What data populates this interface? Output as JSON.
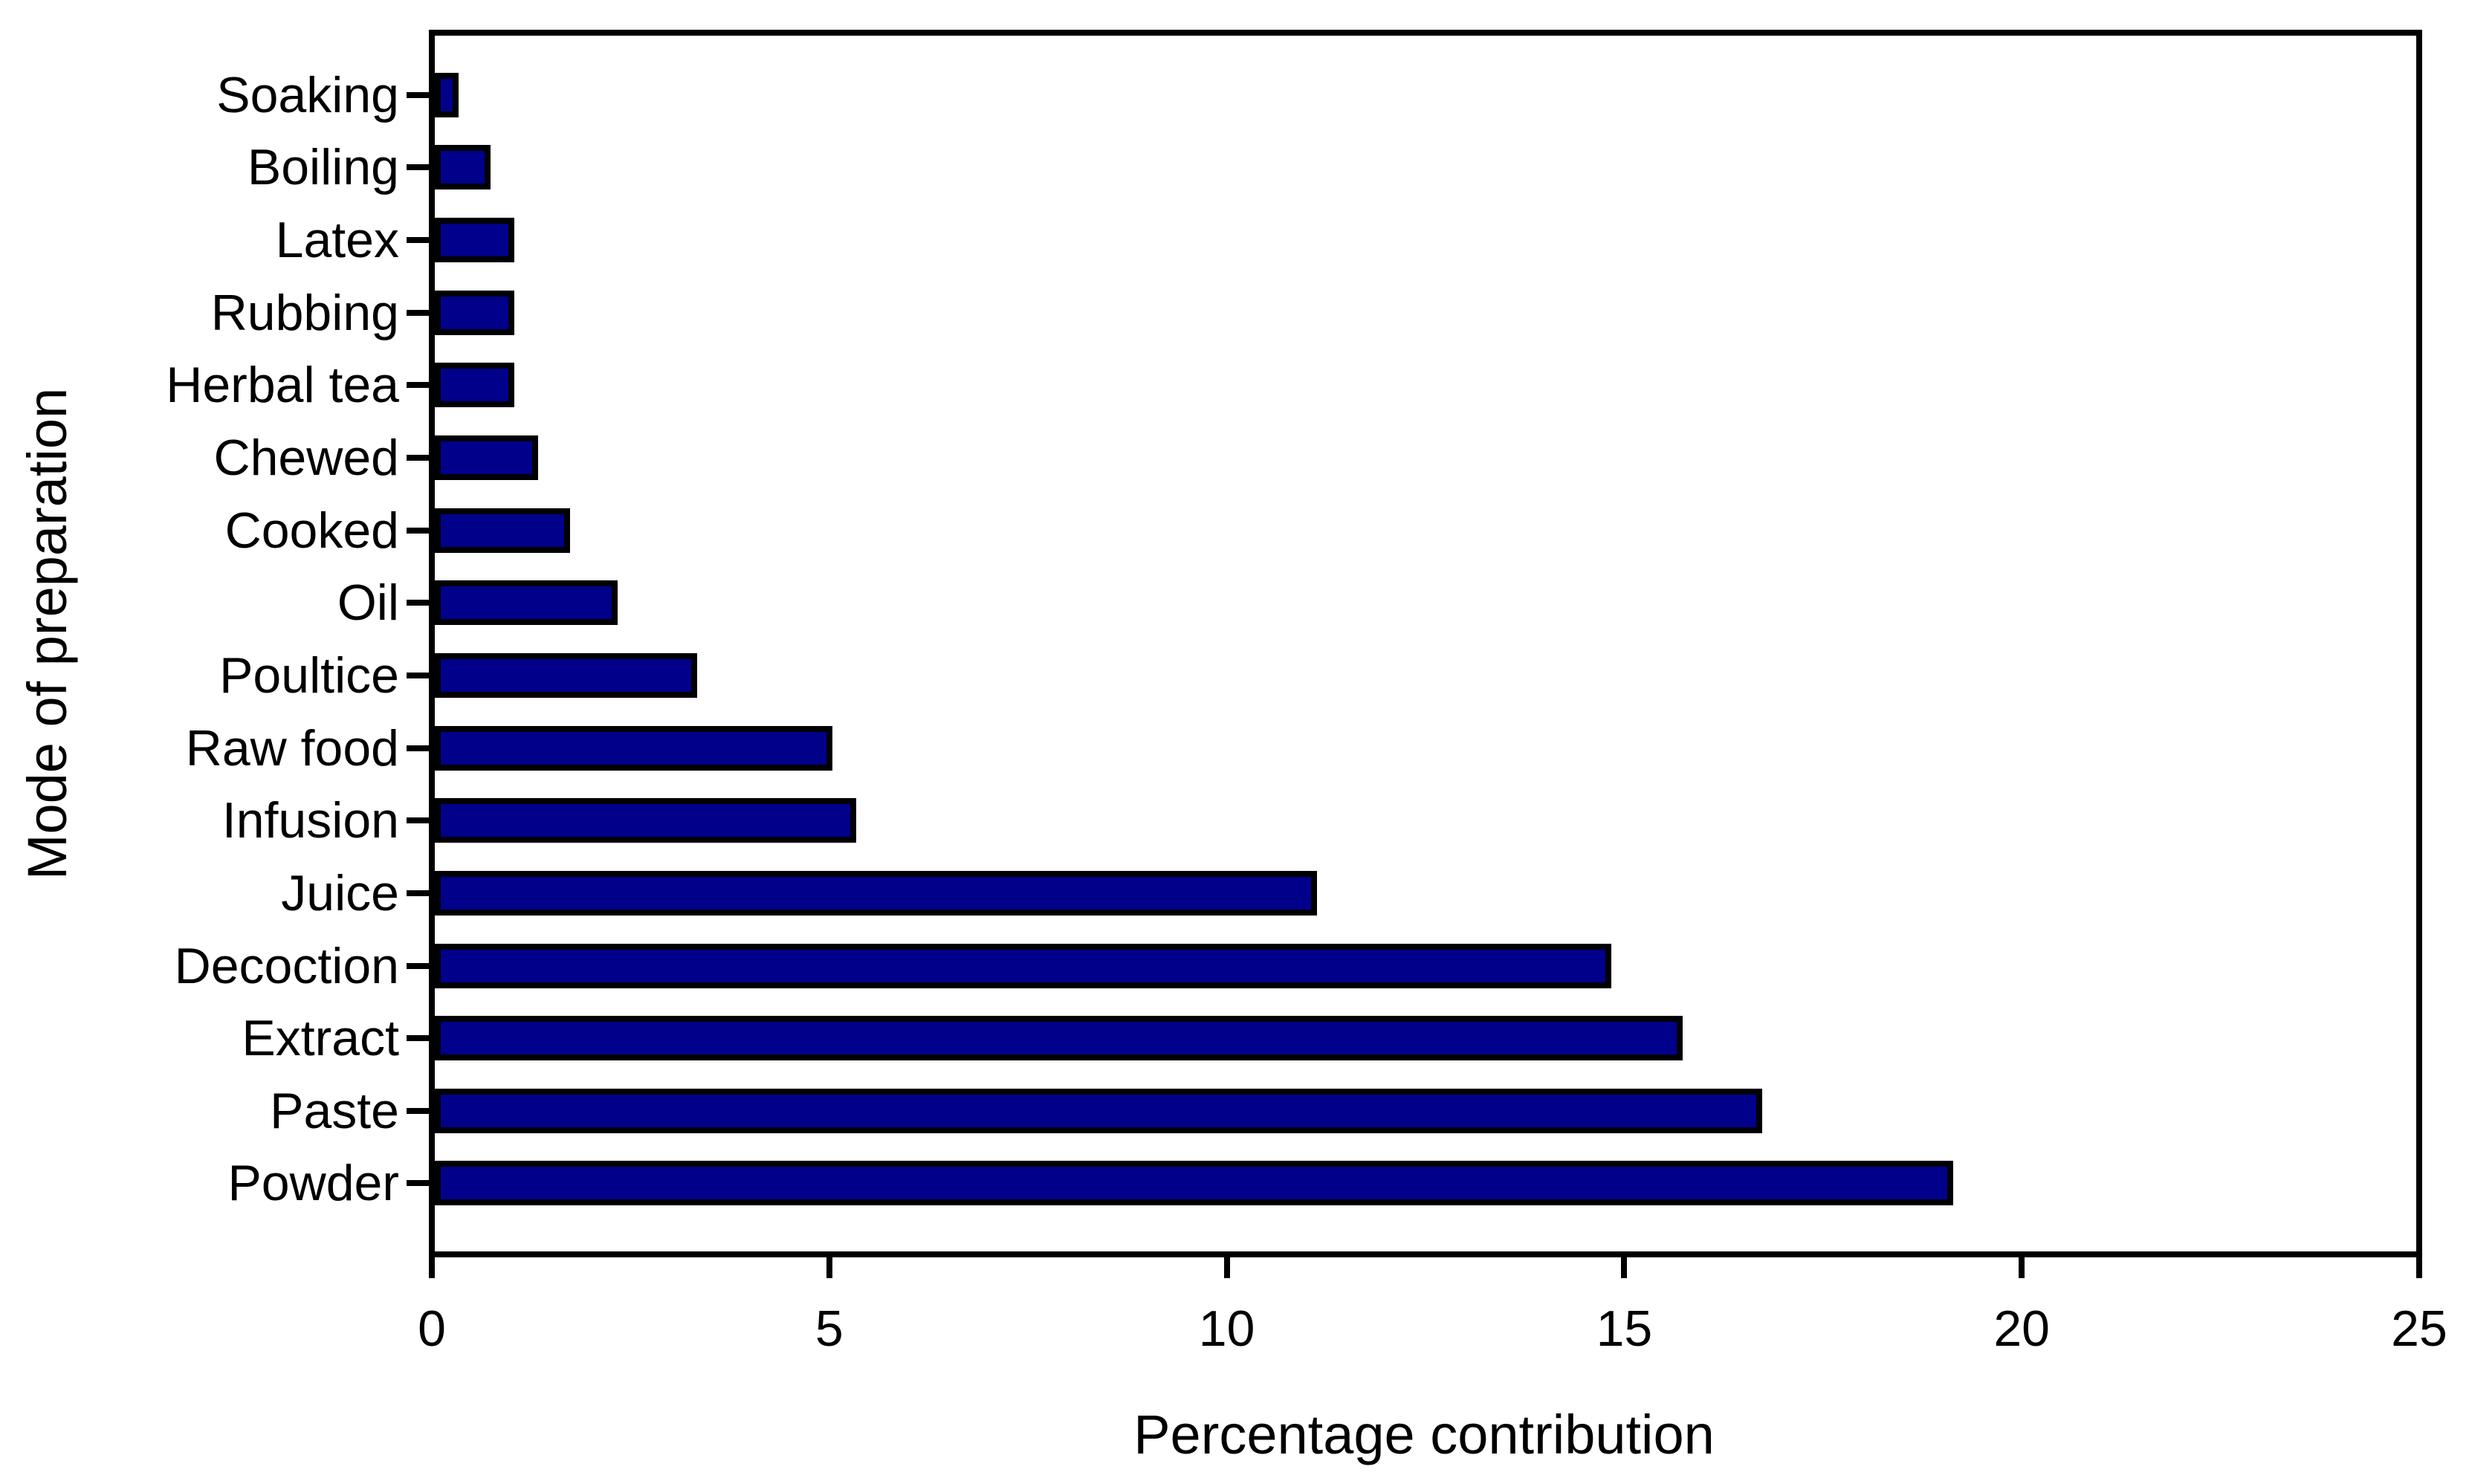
{
  "chart_data": {
    "type": "bar",
    "orientation": "horizontal",
    "title": "",
    "xlabel": "Percentage contribution",
    "ylabel": "Mode of preparation",
    "categories": [
      "Soaking",
      "Boiling",
      "Latex",
      "Rubbing",
      "Herbal tea",
      "Chewed",
      "Cooked",
      "Oil",
      "Poultice",
      "Raw food",
      "Infusion",
      "Juice",
      "Decoction",
      "Extract",
      "Paste",
      "Powder"
    ],
    "values": [
      0.3,
      0.7,
      1.0,
      1.0,
      1.0,
      1.3,
      1.7,
      2.3,
      3.3,
      5.0,
      5.3,
      11.1,
      14.8,
      15.7,
      16.7,
      19.1
    ],
    "xlim": [
      0,
      25
    ],
    "x_ticks": [
      0,
      5,
      10,
      15,
      20,
      25
    ],
    "grid": false,
    "legend": false,
    "bar_color": "#00008B",
    "bar_border_color": "#000000",
    "axis_color": "#000000",
    "background_color": "#ffffff"
  }
}
